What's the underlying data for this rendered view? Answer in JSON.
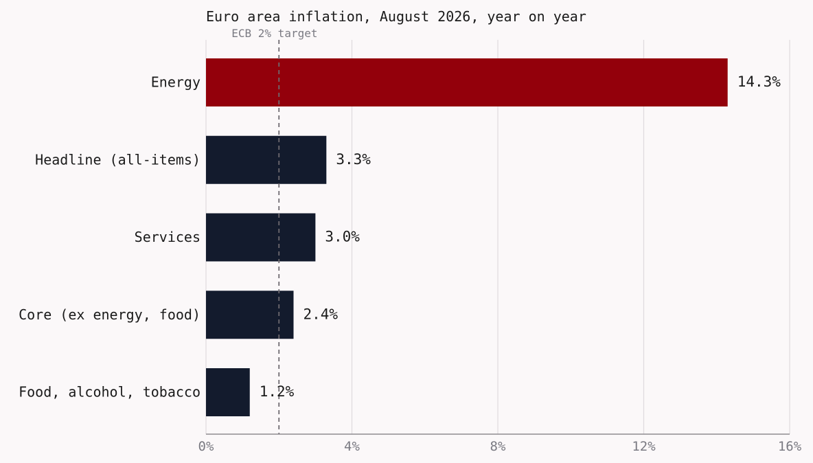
{
  "chart_data": {
    "type": "bar",
    "orientation": "horizontal",
    "title": "Euro area inflation, August 2026, year on year",
    "categories": [
      "Energy",
      "Headline (all-items)",
      "Services",
      "Core (ex energy, food)",
      "Food, alcohol, tobacco"
    ],
    "values": [
      14.3,
      3.3,
      3.0,
      2.4,
      1.2
    ],
    "value_labels": [
      "14.3%",
      "3.3%",
      "3.0%",
      "2.4%",
      "1.2%"
    ],
    "highlight": {
      "category": "Energy",
      "color": "#93000b"
    },
    "bar_color": "#131b2d",
    "xlim": [
      0,
      16
    ],
    "xticks": [
      0,
      4,
      8,
      12,
      16
    ],
    "xtick_labels": [
      "0%",
      "4%",
      "8%",
      "12%",
      "16%"
    ],
    "grid": "vertical",
    "reference_line": {
      "value": 2,
      "label": "ECB 2% target",
      "style": "dashed"
    },
    "xlabel": "",
    "ylabel": ""
  }
}
